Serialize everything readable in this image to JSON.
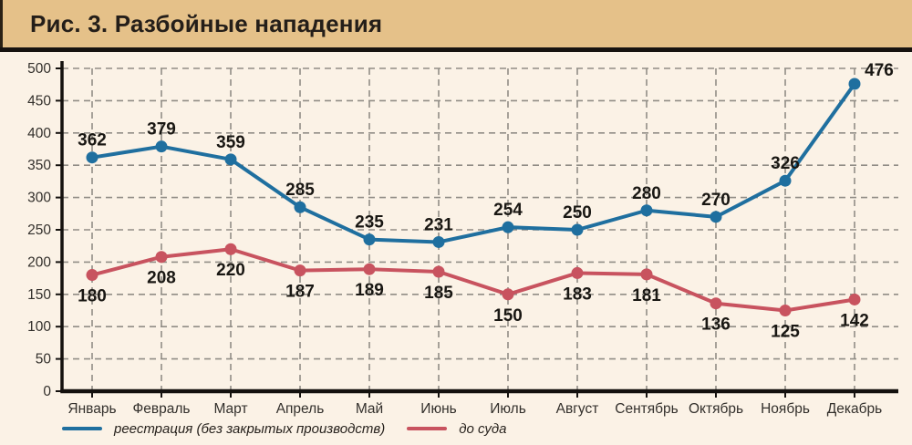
{
  "header": {
    "title": "Рис. 3. Разбойные нападения"
  },
  "colors": {
    "header_bg": "#e5c189",
    "page_bg": "#fbf2e6",
    "divider": "#171310",
    "axis": "#14110e",
    "grid": "#918d86",
    "tick_label": "#33302c",
    "data_label": "#191713",
    "series_blue": "#1f6f9f",
    "series_red": "#c8535f"
  },
  "chart_data": {
    "type": "line",
    "title": "Рис. 3. Разбойные нападения",
    "categories": [
      "Январь",
      "Февраль",
      "Март",
      "Апрель",
      "Май",
      "Июнь",
      "Июль",
      "Август",
      "Сентябрь",
      "Октябрь",
      "Ноябрь",
      "Декабрь"
    ],
    "series": [
      {
        "name": "реестрация (без закрытых производств)",
        "color": "#1f6f9f",
        "label_position": "above",
        "values": [
          362,
          379,
          359,
          285,
          235,
          231,
          254,
          250,
          280,
          270,
          326,
          476
        ]
      },
      {
        "name": "до суда",
        "color": "#c8535f",
        "label_position": "below",
        "values": [
          180,
          208,
          220,
          187,
          189,
          185,
          150,
          183,
          181,
          136,
          125,
          142
        ]
      }
    ],
    "xlabel": "",
    "ylabel": "",
    "ylim": [
      0,
      500
    ],
    "ytick_step": 50,
    "grid": "dashed",
    "legend_position": "bottom-left"
  }
}
